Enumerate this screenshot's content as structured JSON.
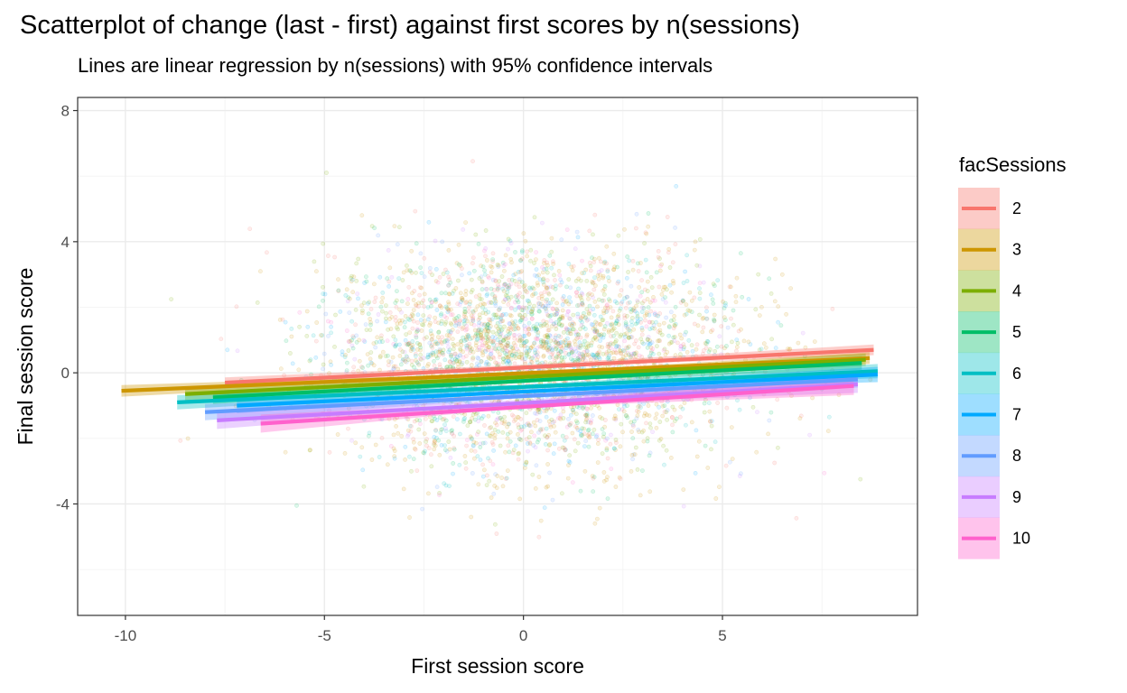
{
  "chart_data": {
    "type": "scatter",
    "title": "Scatterplot of change (last - first) against first scores by n(sessions)",
    "subtitle": "Lines are linear regression by n(sessions) with 95% confidence intervals",
    "xlabel": "First session score",
    "ylabel": "Final session score",
    "xlim": [
      -11.2,
      9.9
    ],
    "ylim": [
      -7.4,
      8.4
    ],
    "x_ticks": [
      -10,
      -5,
      0,
      5
    ],
    "y_ticks": [
      -4,
      0,
      4,
      8
    ],
    "grid": true,
    "legend": {
      "title": "facSessions",
      "position": "right"
    },
    "scatter_cloud": {
      "x_center": 0.2,
      "y_center": 0.4,
      "x_sd": 2.6,
      "y_sd": 1.6,
      "x_range": [
        -10.2,
        9.0
      ],
      "y_range": [
        -6.8,
        7.4
      ]
    },
    "series": [
      {
        "name": "2",
        "color": "#F8766D",
        "line": {
          "x": [
            -7.5,
            8.8
          ],
          "y": [
            -0.3,
            0.7
          ]
        }
      },
      {
        "name": "3",
        "color": "#CD9600",
        "line": {
          "x": [
            -10.1,
            8.7
          ],
          "y": [
            -0.55,
            0.45
          ]
        }
      },
      {
        "name": "4",
        "color": "#7CAE00",
        "line": {
          "x": [
            -8.5,
            8.6
          ],
          "y": [
            -0.65,
            0.4
          ]
        }
      },
      {
        "name": "5",
        "color": "#00BE67",
        "line": {
          "x": [
            -7.8,
            8.5
          ],
          "y": [
            -0.75,
            0.3
          ]
        }
      },
      {
        "name": "6",
        "color": "#00BFC4",
        "line": {
          "x": [
            -8.7,
            8.9
          ],
          "y": [
            -0.9,
            0.05
          ]
        }
      },
      {
        "name": "7",
        "color": "#00A9FF",
        "line": {
          "x": [
            -7.2,
            8.9
          ],
          "y": [
            -1.0,
            -0.05
          ]
        }
      },
      {
        "name": "8",
        "color": "#619CFF",
        "line": {
          "x": [
            -8.0,
            8.4
          ],
          "y": [
            -1.2,
            -0.2
          ]
        }
      },
      {
        "name": "9",
        "color": "#C77CFF",
        "line": {
          "x": [
            -7.7,
            8.4
          ],
          "y": [
            -1.45,
            -0.35
          ]
        }
      },
      {
        "name": "10",
        "color": "#FF61CC",
        "line": {
          "x": [
            -6.6,
            8.3
          ],
          "y": [
            -1.55,
            -0.4
          ]
        }
      }
    ]
  }
}
